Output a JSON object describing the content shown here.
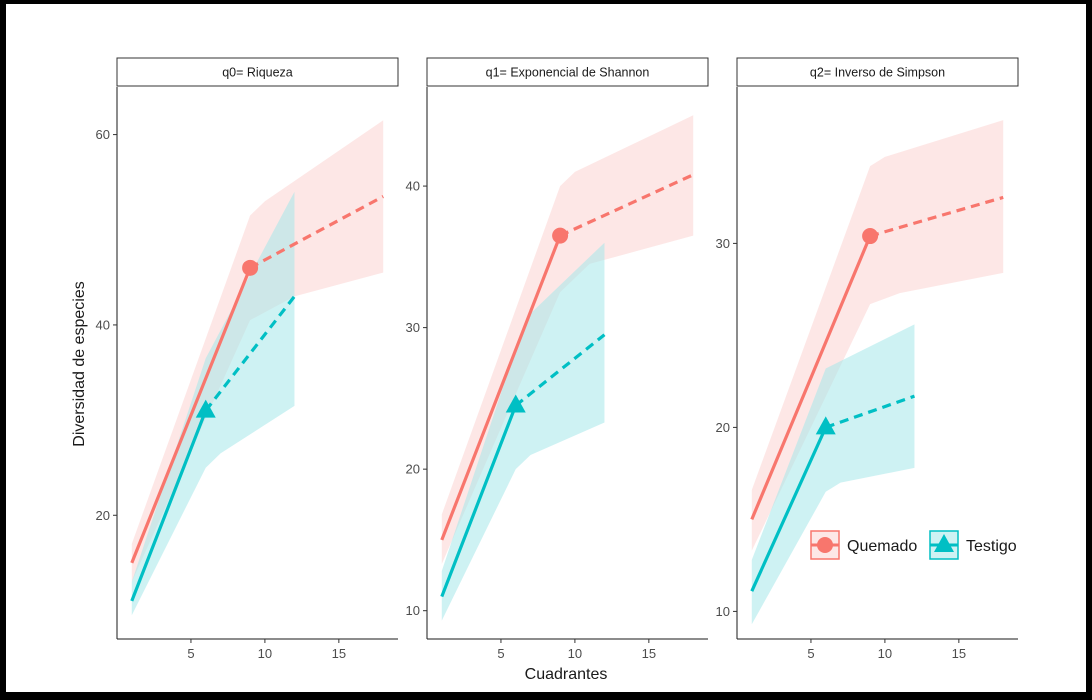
{
  "chart_data": {
    "type": "line",
    "xlabel": "Cuadrantes",
    "ylabel": "Diversidad de especies",
    "x_ticks": [
      5,
      10,
      15
    ],
    "legend": {
      "placement": "bottom-right",
      "entries": [
        {
          "name": "Quemado",
          "color": "#F8766D",
          "marker": "circle"
        },
        {
          "name": "Testigo",
          "color": "#00BFC4",
          "marker": "triangle"
        }
      ]
    },
    "colors": {
      "Quemado": "#F8766D",
      "Testigo": "#00BFC4",
      "Quemado_band": "#FBD3D1",
      "Testigo_band": "#A6E7EA"
    },
    "panels": [
      {
        "title": "q0= Riqueza",
        "xlim": [
          0,
          19
        ],
        "ylim": [
          7,
          65
        ],
        "y_ticks": [
          20,
          40,
          60
        ],
        "series": [
          {
            "name": "Quemado",
            "observed_x": 9,
            "observed_y": 46,
            "interpolated": [
              [
                1,
                15
              ],
              [
                9,
                46
              ]
            ],
            "extrapolated": [
              [
                9,
                46
              ],
              [
                18,
                53.5
              ]
            ],
            "ci_lower": [
              [
                1,
                13
              ],
              [
                9,
                40.5
              ],
              [
                12,
                43
              ],
              [
                18,
                45.5
              ]
            ],
            "ci_upper": [
              [
                1,
                17
              ],
              [
                9,
                51.5
              ],
              [
                10,
                53
              ],
              [
                18,
                61.5
              ]
            ]
          },
          {
            "name": "Testigo",
            "observed_x": 6,
            "observed_y": 31,
            "interpolated": [
              [
                1,
                11
              ],
              [
                6,
                31
              ]
            ],
            "extrapolated": [
              [
                6,
                31
              ],
              [
                12,
                43
              ]
            ],
            "ci_lower": [
              [
                1,
                9.5
              ],
              [
                6,
                25
              ],
              [
                7,
                26.5
              ],
              [
                12,
                31.5
              ]
            ],
            "ci_upper": [
              [
                1,
                13
              ],
              [
                6,
                36.5
              ],
              [
                12,
                54
              ]
            ]
          }
        ]
      },
      {
        "title": "q1= Exponencial de Shannon",
        "xlim": [
          0,
          19
        ],
        "ylim": [
          8,
          47
        ],
        "y_ticks": [
          10,
          20,
          30,
          40
        ],
        "series": [
          {
            "name": "Quemado",
            "observed_x": 9,
            "observed_y": 36.5,
            "interpolated": [
              [
                1,
                15
              ],
              [
                9,
                36.5
              ]
            ],
            "extrapolated": [
              [
                9,
                36.5
              ],
              [
                18,
                40.8
              ]
            ],
            "ci_lower": [
              [
                1,
                13.3
              ],
              [
                9,
                32.5
              ],
              [
                11,
                34.5
              ],
              [
                18,
                36.5
              ]
            ],
            "ci_upper": [
              [
                1,
                16.8
              ],
              [
                9,
                40
              ],
              [
                10,
                41
              ],
              [
                18,
                45
              ]
            ]
          },
          {
            "name": "Testigo",
            "observed_x": 6,
            "observed_y": 24.5,
            "interpolated": [
              [
                1,
                11
              ],
              [
                6,
                24.5
              ]
            ],
            "extrapolated": [
              [
                6,
                24.5
              ],
              [
                12,
                29.5
              ]
            ],
            "ci_lower": [
              [
                1,
                9.3
              ],
              [
                6,
                20
              ],
              [
                7,
                21
              ],
              [
                12,
                23.3
              ]
            ],
            "ci_upper": [
              [
                1,
                12.8
              ],
              [
                6,
                28.5
              ],
              [
                7,
                31
              ],
              [
                12,
                36
              ]
            ]
          }
        ]
      },
      {
        "title": "q2= Inverso de Simpson",
        "xlim": [
          0,
          19
        ],
        "ylim": [
          8.5,
          38.5
        ],
        "y_ticks": [
          10,
          20,
          30
        ],
        "series": [
          {
            "name": "Quemado",
            "observed_x": 9,
            "observed_y": 30.4,
            "interpolated": [
              [
                1,
                15
              ],
              [
                9,
                30.4
              ]
            ],
            "extrapolated": [
              [
                9,
                30.4
              ],
              [
                18,
                32.5
              ]
            ],
            "ci_lower": [
              [
                1,
                13.3
              ],
              [
                9,
                26.7
              ],
              [
                11,
                27.3
              ],
              [
                18,
                28.4
              ]
            ],
            "ci_upper": [
              [
                1,
                16.6
              ],
              [
                9,
                34.2
              ],
              [
                10,
                34.7
              ],
              [
                18,
                36.7
              ]
            ]
          },
          {
            "name": "Testigo",
            "observed_x": 6,
            "observed_y": 20,
            "interpolated": [
              [
                1,
                11.1
              ],
              [
                6,
                20
              ]
            ],
            "extrapolated": [
              [
                6,
                20
              ],
              [
                12,
                21.7
              ]
            ],
            "ci_lower": [
              [
                1,
                9.3
              ],
              [
                6,
                16.5
              ],
              [
                7,
                17
              ],
              [
                12,
                17.8
              ]
            ],
            "ci_upper": [
              [
                1,
                12.8
              ],
              [
                6,
                23.2
              ],
              [
                8,
                24
              ],
              [
                12,
                25.6
              ]
            ]
          }
        ]
      }
    ]
  }
}
